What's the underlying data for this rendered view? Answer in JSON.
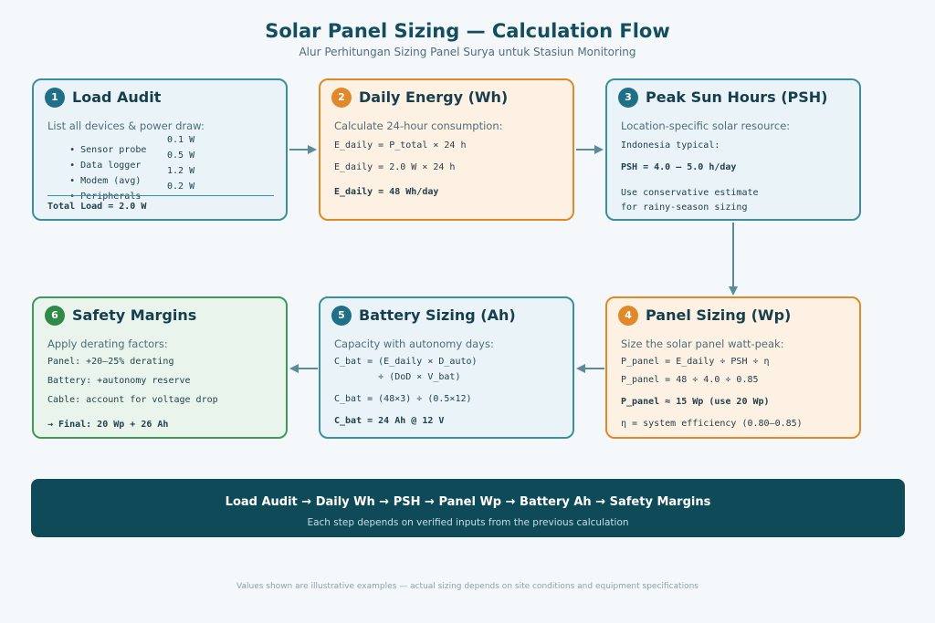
{
  "header": {
    "title": "Solar Panel Sizing — Calculation Flow",
    "subtitle": "Alur Perhitungan Sizing Panel Surya untuk Stasiun Monitoring"
  },
  "steps": [
    {
      "number": "1",
      "title": "Load Audit",
      "desc": "List all devices & power draw:",
      "devices": [
        {
          "name": "• Sensor probe",
          "value": "0.1 W"
        },
        {
          "name": "• Data logger",
          "value": "0.5 W"
        },
        {
          "name": "• Modem (avg)",
          "value": "1.2 W"
        },
        {
          "name": "• Peripherals",
          "value": "0.2 W"
        }
      ],
      "total": "Total Load = 2.0 W"
    },
    {
      "number": "2",
      "title": "Daily Energy (Wh)",
      "desc": "Calculate 24-hour consumption:",
      "lines": [
        "E_daily = P_total × 24 h",
        "E_daily = 2.0 W × 24 h",
        "E_daily = 48 Wh/day"
      ]
    },
    {
      "number": "3",
      "title": "Peak Sun Hours (PSH)",
      "desc": "Location-specific solar resource:",
      "lines": [
        "Indonesia typical:",
        "PSH = 4.0 – 5.0 h/day",
        "Use conservative estimate",
        "for rainy-season sizing"
      ]
    },
    {
      "number": "4",
      "title": "Panel Sizing (Wp)",
      "desc": "Size the solar panel watt-peak:",
      "lines": [
        "P_panel = E_daily ÷ PSH ÷ η",
        "P_panel = 48 ÷ 4.0 ÷ 0.85",
        "P_panel ≈ 15 Wp (use 20 Wp)",
        "η = system efficiency (0.80–0.85)"
      ]
    },
    {
      "number": "5",
      "title": "Battery Sizing (Ah)",
      "desc": "Capacity with autonomy days:",
      "lines": [
        "C_bat = (E_daily × D_auto)",
        "        ÷ (DoD × V_bat)",
        "C_bat = (48×3) ÷ (0.5×12)",
        "C_bat = 24 Ah @ 12 V"
      ]
    },
    {
      "number": "6",
      "title": "Safety Margins",
      "desc": "Apply derating factors:",
      "lines": [
        "Panel: +20–25% derating",
        "Battery: +autonomy reserve",
        "Cable: account for voltage drop",
        "→ Final: 20 Wp + 26 Ah"
      ]
    }
  ],
  "summary": {
    "flow": "Load Audit → Daily Wh → PSH → Panel Wp → Battery Ah → Safety Margins",
    "note": "Each step depends on verified inputs from the previous calculation"
  },
  "footnote": "Values shown are illustrative examples — actual sizing depends on site conditions and equipment specifications",
  "colors": {
    "blue": "#3b8fa0",
    "orange": "#e0892a",
    "green": "#3f9a57",
    "banner": "#0f4a59",
    "arrow": "#5b8a98"
  }
}
